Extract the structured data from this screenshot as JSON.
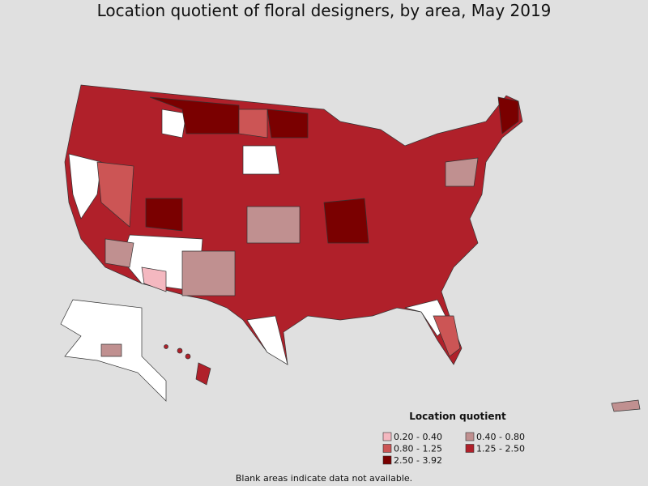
{
  "title": "Location quotient of floral designers, by area, May 2019",
  "legend": {
    "title": "Location quotient",
    "items": [
      {
        "label": "0.20 - 0.40",
        "color": "#f4b8c0"
      },
      {
        "label": "0.40 - 0.80",
        "color": "#c09090"
      },
      {
        "label": "0.80 - 1.25",
        "color": "#cc5555"
      },
      {
        "label": "1.25 - 2.50",
        "color": "#b0202a"
      },
      {
        "label": "2.50 - 3.92",
        "color": "#7a0000"
      }
    ]
  },
  "note": "Blank areas indicate data not available."
}
